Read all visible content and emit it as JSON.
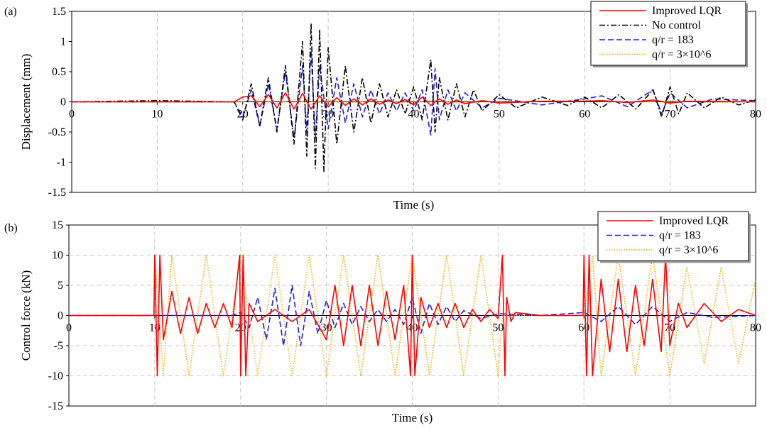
{
  "chart_data": [
    {
      "panel": "(a)",
      "type": "line",
      "xlabel": "Time (s)",
      "ylabel": "Displacement (mm)",
      "xlim": [
        0,
        80
      ],
      "ylim": [
        -1.5,
        1.5
      ],
      "xticks": [
        0,
        10,
        20,
        30,
        40,
        50,
        60,
        70,
        80
      ],
      "yticks": [
        -1.5,
        -1,
        -0.5,
        0,
        0.5,
        1,
        1.5
      ],
      "ytick_labels": [
        "-1.5",
        "-1",
        "-0.5",
        "0",
        "0.5",
        "1",
        "1.5"
      ],
      "grid": "vertical-dashed",
      "legend_position": "top-right",
      "series": [
        {
          "name": "Improved LQR",
          "color": "#ff0000",
          "dash": "solid",
          "x": [
            0,
            10,
            19,
            20,
            21,
            22,
            23,
            24,
            25,
            26,
            27,
            28,
            29,
            30,
            31,
            32,
            33,
            34,
            35,
            36,
            37,
            38,
            39,
            40,
            41,
            42,
            43,
            44,
            45,
            46,
            48,
            50,
            55,
            60,
            62,
            65,
            68,
            70,
            72,
            75,
            80
          ],
          "values": [
            0,
            0,
            0,
            0.08,
            0.1,
            -0.08,
            0.12,
            -0.1,
            0.15,
            -0.12,
            0.14,
            -0.12,
            0.1,
            -0.08,
            0.07,
            -0.06,
            0.05,
            -0.05,
            0.05,
            -0.04,
            0.03,
            -0.03,
            0.04,
            -0.05,
            0.08,
            -0.06,
            0.05,
            -0.04,
            0.03,
            -0.03,
            0.02,
            -0.02,
            0.01,
            0.01,
            0.02,
            -0.01,
            0.03,
            -0.02,
            0.01,
            0.01,
            0
          ]
        },
        {
          "name": "No control",
          "color": "#000000",
          "dash": "dashdot",
          "x": [
            0,
            10,
            19,
            20,
            21,
            22,
            23,
            24,
            25,
            26,
            27,
            27.5,
            28,
            28.5,
            29,
            29.5,
            30,
            31,
            32,
            33,
            34,
            35,
            36,
            37,
            38,
            39,
            40,
            41,
            42,
            42.5,
            43,
            44,
            45,
            46,
            47,
            48,
            50,
            52,
            55,
            58,
            60,
            62,
            64,
            66,
            68,
            69,
            70,
            71,
            72,
            74,
            76,
            78,
            80
          ],
          "values": [
            0,
            0.02,
            0,
            -0.3,
            0.3,
            -0.4,
            0.4,
            -0.5,
            0.6,
            -0.7,
            1.0,
            -0.9,
            1.3,
            -1.1,
            1.2,
            -1.15,
            0.9,
            -0.7,
            0.6,
            -0.5,
            0.4,
            -0.35,
            0.3,
            -0.25,
            0.2,
            -0.2,
            0.25,
            -0.3,
            0.7,
            -0.5,
            0.4,
            -0.3,
            0.3,
            -0.25,
            0.2,
            -0.15,
            0.12,
            -0.1,
            0.08,
            -0.06,
            0.08,
            -0.1,
            0.12,
            -0.12,
            0.2,
            -0.25,
            0.25,
            -0.2,
            0.15,
            -0.1,
            0.08,
            -0.05,
            0.03
          ]
        },
        {
          "name": "q/r = 183",
          "color": "#1f1fdd",
          "dash": "dashed",
          "x": [
            0,
            10,
            19,
            20,
            21,
            22,
            23,
            24,
            25,
            26,
            27,
            27.5,
            28,
            28.5,
            29,
            30,
            31,
            32,
            33,
            34,
            35,
            36,
            37,
            38,
            39,
            40,
            41,
            42,
            42.5,
            43,
            44,
            45,
            46,
            48,
            50,
            55,
            60,
            62,
            65,
            68,
            69,
            70,
            72,
            75,
            80
          ],
          "values": [
            0,
            0,
            0,
            -0.25,
            0.2,
            -0.4,
            0.3,
            -0.45,
            0.5,
            -0.6,
            0.6,
            -0.5,
            0.85,
            -0.6,
            0.6,
            -0.45,
            0.4,
            -0.35,
            0.3,
            -0.25,
            0.2,
            -0.2,
            0.15,
            -0.15,
            0.15,
            -0.15,
            0.2,
            -0.55,
            0.55,
            -0.3,
            0.2,
            -0.15,
            0.15,
            -0.1,
            0.06,
            -0.05,
            0.05,
            0.1,
            -0.08,
            0.2,
            -0.2,
            0.15,
            -0.1,
            0.05,
            0.02
          ]
        },
        {
          "name": "q/r = 3×10^6",
          "color": "#f0b400",
          "dash": "dotted",
          "x": [
            0,
            10,
            20,
            22,
            24,
            26,
            28,
            30,
            32,
            35,
            40,
            42,
            45,
            50,
            55,
            60,
            65,
            70,
            75,
            80
          ],
          "values": [
            0,
            0,
            0,
            0.03,
            -0.03,
            0.04,
            -0.04,
            0.03,
            -0.03,
            0.02,
            -0.02,
            0.03,
            -0.02,
            0.01,
            0.01,
            0.02,
            -0.01,
            0.02,
            -0.01,
            0
          ]
        }
      ]
    },
    {
      "panel": "(b)",
      "type": "line",
      "xlabel": "Time (s)",
      "ylabel": "Control force (kN)",
      "xlim": [
        0,
        80
      ],
      "ylim": [
        -15,
        15
      ],
      "xticks": [
        0,
        10,
        20,
        30,
        40,
        50,
        60,
        70,
        80
      ],
      "yticks": [
        -15,
        -10,
        -5,
        0,
        5,
        10,
        15
      ],
      "ytick_labels": [
        "-15",
        "-10",
        "-5",
        "0",
        "5",
        "10",
        "15"
      ],
      "grid": "both-dashed",
      "legend_position": "top-right",
      "series": [
        {
          "name": "Improved LQR",
          "color": "#ff0000",
          "dash": "solid",
          "x": [
            0,
            9.9,
            10,
            10.3,
            10.6,
            11,
            12,
            13,
            14,
            15,
            16,
            17,
            18,
            19,
            19.9,
            20,
            20.3,
            20.6,
            21,
            22,
            24,
            26,
            28,
            30,
            31,
            32,
            33,
            34,
            35,
            36,
            37,
            38,
            39,
            39.8,
            40,
            40.3,
            41,
            42,
            43,
            44,
            45,
            46,
            47,
            48,
            49,
            50,
            50.5,
            50.8,
            51,
            51.5,
            52,
            55,
            58,
            59.9,
            60,
            60.3,
            60.6,
            61,
            62,
            63,
            64,
            65,
            66,
            67,
            68,
            69,
            69.5,
            70,
            71,
            72,
            74,
            76,
            78,
            80
          ],
          "values": [
            0,
            0,
            10,
            -10,
            10,
            -4,
            4,
            -3,
            3,
            -3,
            2,
            -2,
            2,
            -2,
            10,
            -10,
            10,
            -10,
            2,
            -1,
            1,
            -1,
            1,
            -4,
            5,
            -5,
            5,
            -5,
            5,
            -5,
            4,
            -4,
            5,
            -10,
            10,
            -10,
            3,
            -2,
            2,
            -2,
            2,
            -2,
            1,
            -1,
            1,
            -0.5,
            10,
            -10,
            3,
            -1,
            0.5,
            0,
            0,
            0,
            10,
            -10,
            10,
            -10,
            6,
            -6,
            6,
            -6,
            5,
            -5,
            6,
            -6,
            10,
            -5,
            2,
            -2,
            2,
            -1,
            1,
            0
          ]
        },
        {
          "name": "q/r = 183",
          "color": "#1f1fdd",
          "dash": "dashed",
          "x": [
            0,
            19,
            20,
            21,
            22,
            23,
            24,
            25,
            26,
            27,
            28,
            29,
            30,
            31,
            32,
            33,
            34,
            35,
            36,
            37,
            38,
            39,
            40,
            41,
            42,
            43,
            44,
            45,
            46,
            48,
            50,
            55,
            60,
            62,
            64,
            66,
            68,
            70,
            72,
            75,
            80
          ],
          "values": [
            0,
            0,
            0.5,
            -2,
            3,
            -4,
            4.5,
            -5,
            5,
            -5,
            4,
            -3,
            2.5,
            -2,
            2,
            -1.5,
            1.5,
            -1,
            1,
            -1,
            1,
            -1.5,
            3,
            -3,
            2,
            -1.5,
            1.5,
            -1,
            0.8,
            -0.5,
            0.3,
            0,
            0.5,
            -1,
            1.5,
            -1.5,
            1.5,
            -1,
            0.5,
            -0.3,
            0
          ]
        },
        {
          "name": "q/r = 3×10^6",
          "color": "#f0b400",
          "dash": "dotted",
          "x": [
            0,
            9.9,
            10,
            11,
            12,
            14,
            16,
            18,
            20,
            22,
            24,
            26,
            28,
            30,
            32,
            34,
            36,
            38,
            40,
            42,
            44,
            46,
            48,
            50,
            50.5,
            60,
            61,
            62,
            64,
            66,
            68,
            70,
            72,
            74,
            76,
            78,
            80
          ],
          "values": [
            0,
            0,
            10,
            -10,
            10,
            -10,
            10,
            -10,
            10,
            -10,
            10,
            -10,
            10,
            -10,
            10,
            -10,
            10,
            -10,
            10,
            -10,
            10,
            -10,
            10,
            -10,
            0,
            0,
            10,
            -10,
            10,
            -10,
            10,
            -10,
            8,
            -8,
            8,
            -8,
            6
          ]
        }
      ]
    }
  ]
}
